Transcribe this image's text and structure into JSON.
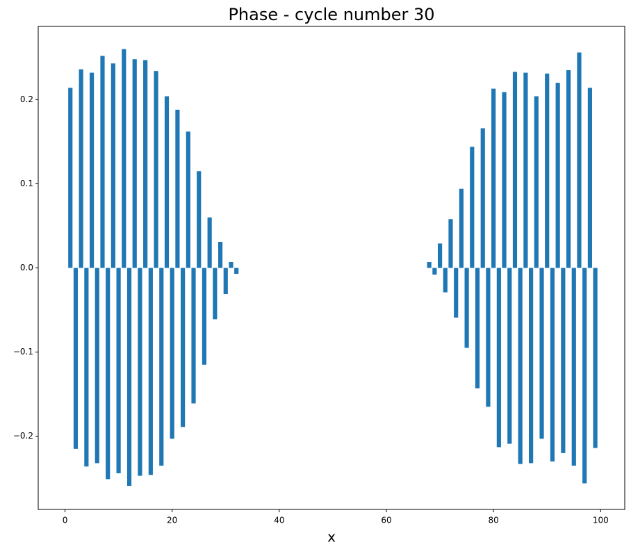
{
  "chart_data": {
    "type": "bar",
    "title": "Phase - cycle number 30",
    "xlabel": "x",
    "color": "#1f77b4",
    "x": [
      1,
      2,
      3,
      4,
      5,
      6,
      7,
      8,
      9,
      10,
      11,
      12,
      13,
      14,
      15,
      16,
      17,
      18,
      19,
      20,
      21,
      22,
      23,
      24,
      25,
      26,
      27,
      28,
      29,
      30,
      31,
      32,
      68,
      69,
      70,
      71,
      72,
      73,
      74,
      75,
      76,
      77,
      78,
      79,
      80,
      81,
      82,
      83,
      84,
      85,
      86,
      87,
      88,
      89,
      90,
      91,
      92,
      93,
      94,
      95,
      96,
      97,
      98,
      99
    ],
    "values": [
      0.214,
      -0.215,
      0.236,
      -0.236,
      0.232,
      -0.232,
      0.252,
      -0.251,
      0.243,
      -0.244,
      0.26,
      -0.259,
      0.248,
      -0.247,
      0.247,
      -0.246,
      0.234,
      -0.235,
      0.204,
      -0.203,
      0.188,
      -0.189,
      0.162,
      -0.161,
      0.115,
      -0.115,
      0.06,
      -0.061,
      0.031,
      -0.031,
      0.007,
      -0.007,
      0.007,
      -0.008,
      0.029,
      -0.029,
      0.058,
      -0.059,
      0.094,
      -0.095,
      0.144,
      -0.143,
      0.166,
      -0.165,
      0.213,
      -0.213,
      0.209,
      -0.209,
      0.233,
      -0.233,
      0.232,
      -0.232,
      0.204,
      -0.203,
      0.231,
      -0.23,
      0.22,
      -0.22,
      0.235,
      -0.235,
      0.256,
      -0.256,
      0.214,
      -0.214
    ],
    "xlim": [
      -5,
      104.5
    ],
    "xticks": [
      0,
      20,
      40,
      60,
      80,
      100
    ],
    "ylim": [
      -0.287,
      0.287
    ],
    "yticks": [
      {
        "value": -0.2,
        "label": "−0.2"
      },
      {
        "value": -0.1,
        "label": "−0.1"
      },
      {
        "value": 0.0,
        "label": "0.0"
      },
      {
        "value": 0.1,
        "label": "0.1"
      },
      {
        "value": 0.2,
        "label": "0.2"
      }
    ],
    "grid": false
  }
}
